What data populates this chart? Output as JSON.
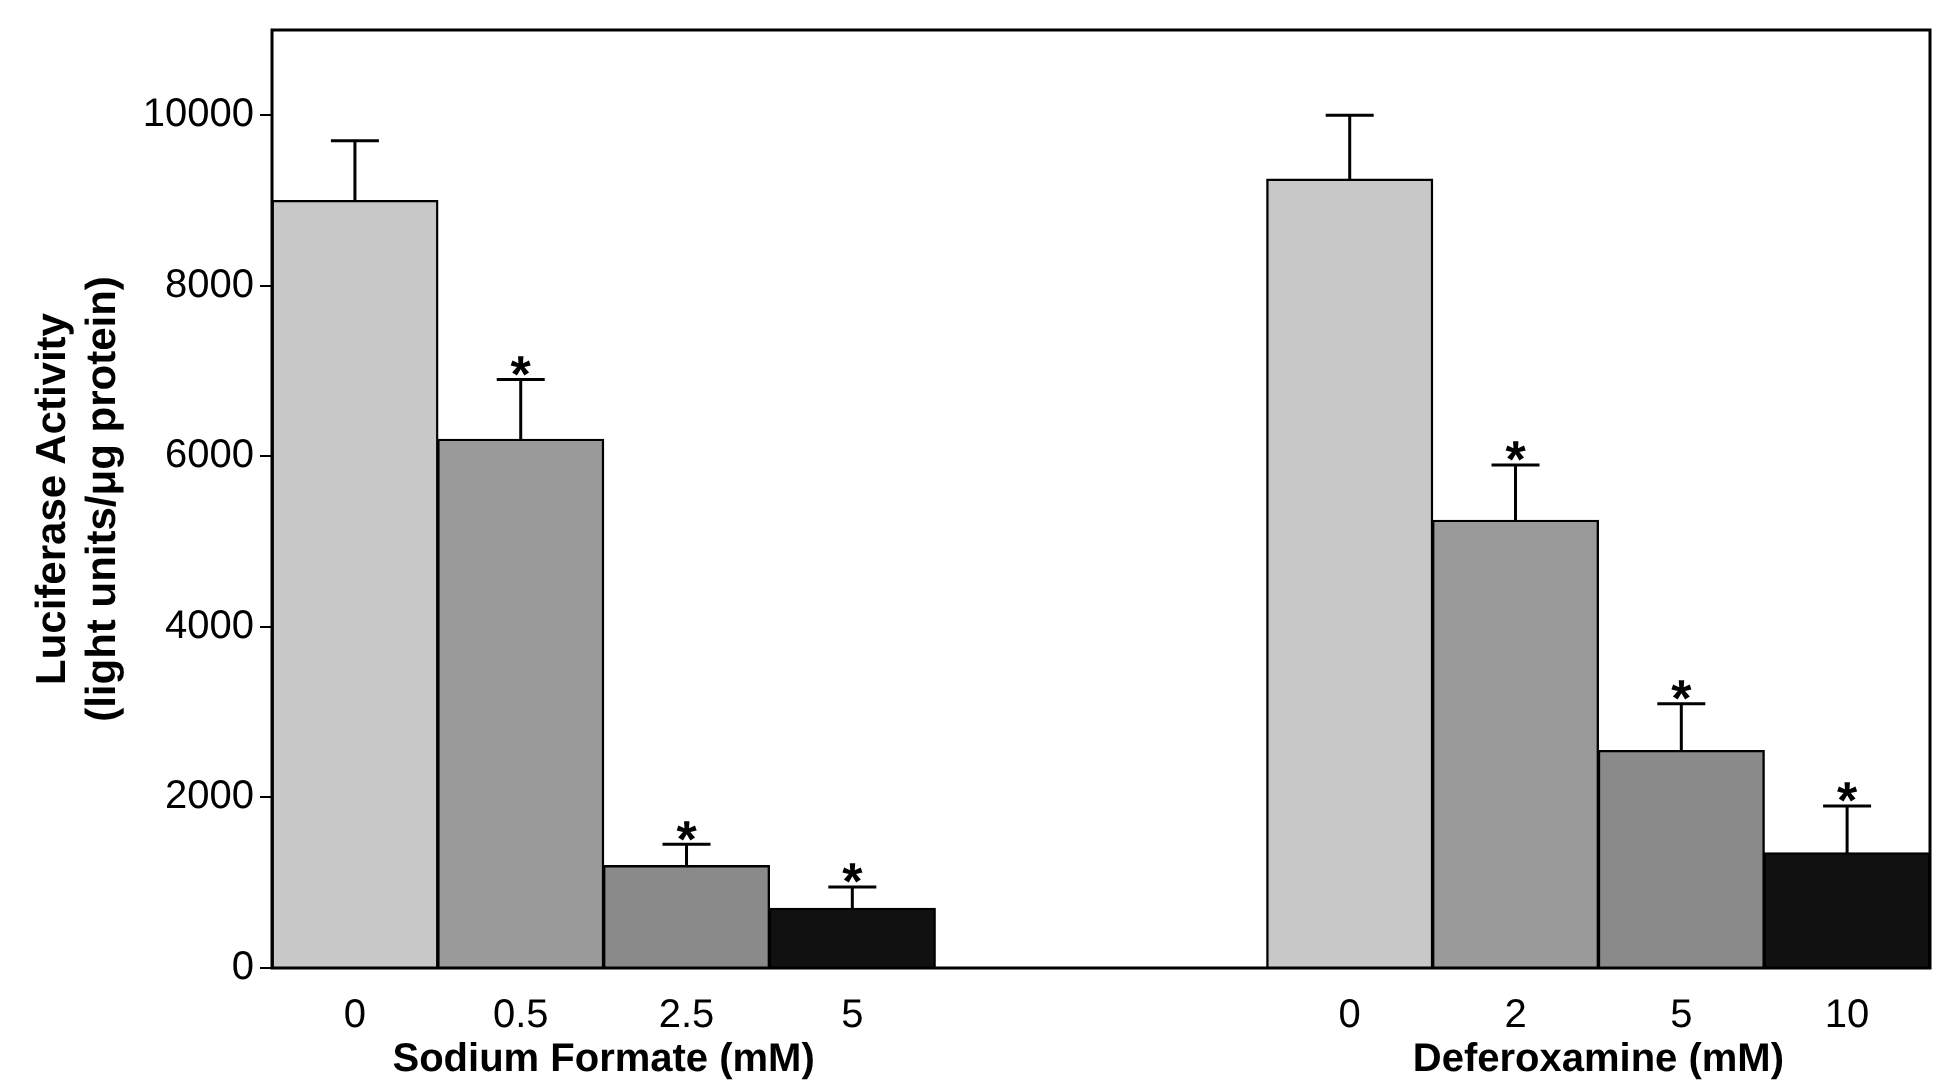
{
  "chart_data": {
    "type": "bar",
    "ylabel": "Luciferase Activity\n(light units/μg protein)",
    "categories": [
      "0",
      "0.5",
      "2.5",
      "5",
      null,
      null,
      "0",
      "2",
      "5",
      "10"
    ],
    "values": [
      9000,
      6200,
      1200,
      700,
      null,
      null,
      9250,
      5250,
      2550,
      1350
    ],
    "colors": [
      "#c8c8c8",
      "#9a9a9a",
      "#8a8a8a",
      "#111111",
      null,
      null,
      "#c8c8c8",
      "#9a9a9a",
      "#8a8a8a",
      "#111111"
    ],
    "errors": [
      [
        9000,
        9700
      ],
      [
        6200,
        6900
      ],
      [
        1200,
        1450
      ],
      [
        700,
        950
      ],
      null,
      null,
      [
        9250,
        10000
      ],
      [
        5250,
        5900
      ],
      [
        2550,
        3100
      ],
      [
        1350,
        1900
      ]
    ],
    "value_labels": [
      null,
      "*",
      "*",
      "*",
      null,
      null,
      null,
      "*",
      "*",
      "*"
    ],
    "annotations": [
      "Sodium Formate (mM)",
      "Deferoxamine (mM)"
    ],
    "ylim": [
      0,
      11000
    ],
    "yticks": [
      0,
      2000,
      4000,
      6000,
      8000,
      10000
    ],
    "grid": false,
    "legend": false
  }
}
